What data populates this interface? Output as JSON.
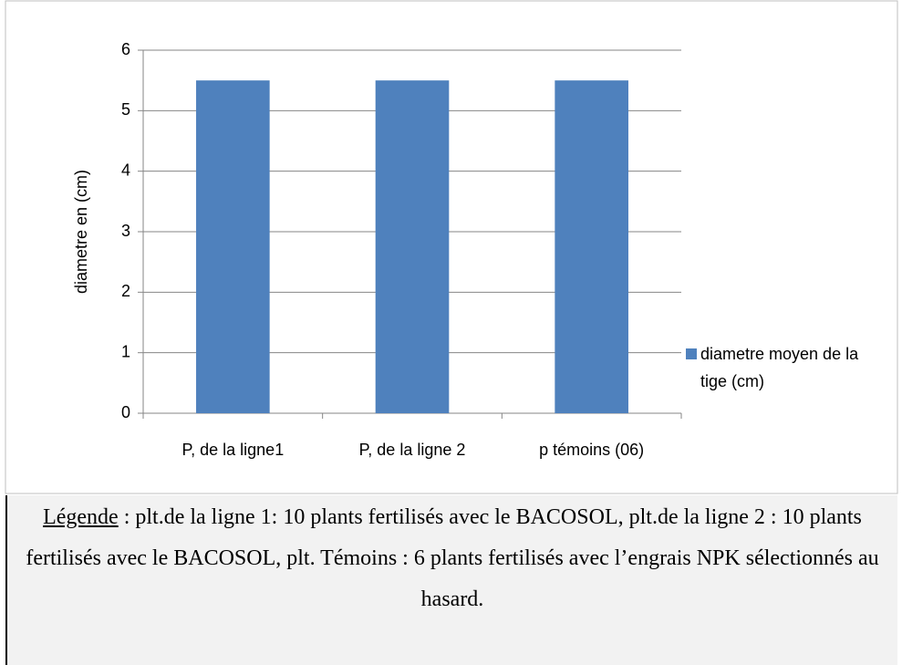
{
  "chart_data": {
    "type": "bar",
    "y_label": "diametre en (cm)",
    "categories": [
      "P, de la ligne1",
      "P, de la ligne 2",
      "p témoins (06)"
    ],
    "series": [
      {
        "name": "diametre moyen de la tige (cm)",
        "color": "#4f81bd",
        "values": [
          5.5,
          5.5,
          5.5
        ]
      }
    ],
    "ylim": [
      0,
      6
    ],
    "yticks": [
      0,
      1,
      2,
      3,
      4,
      5,
      6
    ],
    "grid": true,
    "legend": "right"
  },
  "caption": {
    "label": "Légende",
    "text": ": plt.de la ligne 1: 10 plants fertilisés avec le BACOSOL, plt.de la ligne 2 : 10 plants fertilisés avec le BACOSOL, plt. Témoins : 6 plants fertilisés avec l’engrais NPK sélectionnés au hasard."
  }
}
